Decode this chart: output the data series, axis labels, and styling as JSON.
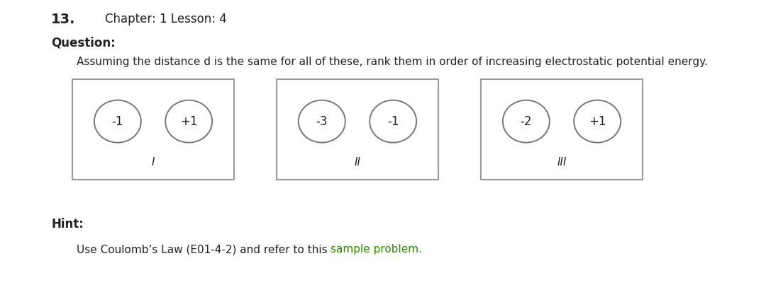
{
  "title_number": "13.",
  "chapter_lesson": "Chapter: 1 Lesson: 4",
  "question_label": "Question:",
  "question_text": "Assuming the distance d is the same for all of these, rank them in order of increasing electrostatic potential energy.",
  "hint_label": "Hint:",
  "hint_text_parts": [
    {
      "text": "Use Coulomb’s Law (E01-4-2) and refer to this ",
      "color": "#222222"
    },
    {
      "text": "sample problem.",
      "color": "#2e8b00"
    }
  ],
  "boxes": [
    {
      "label": "I",
      "charges": [
        "-1",
        "+1"
      ]
    },
    {
      "label": "II",
      "charges": [
        "-3",
        "-1"
      ]
    },
    {
      "label": "III",
      "charges": [
        "-2",
        "+1"
      ]
    }
  ],
  "box_edge_color": "#999999",
  "circle_edge_color": "#777777",
  "text_color": "#222222",
  "bg_color": "#ffffff",
  "fig_w": 10.8,
  "fig_h": 4.03,
  "dpi": 100
}
